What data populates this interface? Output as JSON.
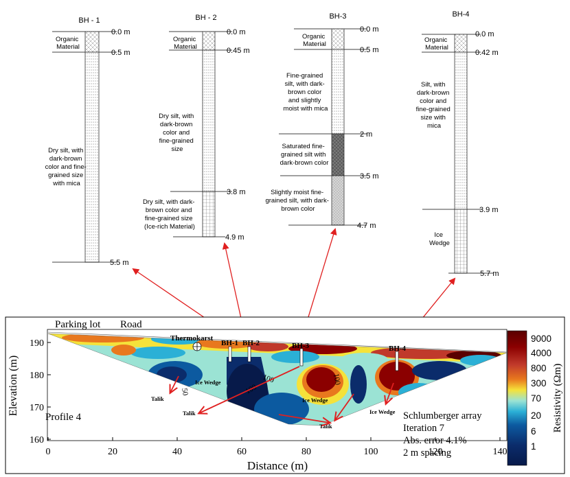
{
  "boreholes": [
    {
      "name": "BH - 1",
      "top_label": "0.0 m",
      "layers": [
        {
          "desc": [
            "Organic",
            "Material"
          ],
          "depth_label": "0.5 m"
        },
        {
          "desc": [
            "Dry silt, with",
            "dark-brown",
            "color and fine-",
            "grained size",
            "with mica"
          ],
          "depth_label": "5.5 m"
        }
      ]
    },
    {
      "name": "BH - 2",
      "top_label": "0.0 m",
      "layers": [
        {
          "desc": [
            "Organic",
            "Material"
          ],
          "depth_label": "0.45 m"
        },
        {
          "desc": [
            "Dry silt, with",
            "dark-brown",
            "color and",
            "fine-grained",
            "size"
          ],
          "depth_label": "3.8 m"
        },
        {
          "desc": [
            "Dry silt, with dark-",
            "brown color and",
            "fine-grained size",
            "(Ice-rich Material)"
          ],
          "depth_label": "4.9 m"
        }
      ]
    },
    {
      "name": "BH-3",
      "top_label": "0.0 m",
      "layers": [
        {
          "desc": [
            "Organic",
            "Material"
          ],
          "depth_label": "0.5 m"
        },
        {
          "desc": [
            "Fine-grained",
            "silt, with dark-",
            "brown color",
            "and slightly",
            "moist with mica"
          ],
          "depth_label": "2 m"
        },
        {
          "desc": [
            "Saturated fine-",
            "grained silt with",
            "dark-brown color"
          ],
          "depth_label": "3.5 m"
        },
        {
          "desc": [
            "Slightly moist fine-",
            "grained silt, with dark-",
            "brown color"
          ],
          "depth_label": "4.7 m"
        }
      ]
    },
    {
      "name": "BH-4",
      "top_label": "0.0 m",
      "layers": [
        {
          "desc": [
            "Organic",
            "Material"
          ],
          "depth_label": "0.42 m"
        },
        {
          "desc": [
            "Silt, with",
            "dark-brown",
            "color and",
            "fine-grained",
            "size with",
            "mica"
          ],
          "depth_label": "3.9 m"
        },
        {
          "desc": [
            "Ice",
            "Wedge"
          ],
          "depth_label": "5.7 m"
        }
      ]
    }
  ],
  "profile": {
    "ylabel": "Elevation (m)",
    "xlabel": "Distance (m)",
    "x_ticks": [
      "0",
      "20",
      "40",
      "60",
      "80",
      "100",
      "120",
      "140"
    ],
    "y_ticks": [
      "160",
      "170",
      "180",
      "190"
    ],
    "site_labels": {
      "parking": "Parking lot",
      "road": "Road",
      "thermokarst": "Thermokarst"
    },
    "borehole_markers": [
      "BH-1",
      "BH-2",
      "BH-3",
      "BH-4"
    ],
    "profile_label": "Profile 4",
    "annotations": [
      "Ice Wedge",
      "Ice Wedge",
      "Ice Wedge",
      "Talik",
      "Talik",
      "Talik"
    ],
    "contour_labels": [
      "50",
      "100",
      "100",
      "100"
    ],
    "info": [
      "Schlumberger array",
      "Iteration 7",
      "Abs. error 4.1%",
      "2 m spacing"
    ]
  },
  "colorbar": {
    "label": "Resistivity (Ωm)",
    "ticks": [
      "9000",
      "4000",
      "800",
      "300",
      "70",
      "20",
      "6",
      "1"
    ],
    "colors": [
      "#5a0000",
      "#8b0000",
      "#c0392b",
      "#e8781e",
      "#f5e23a",
      "#9be3d4",
      "#2bb0d6",
      "#0c5aa0",
      "#0b2c6b",
      "#071a4a"
    ]
  }
}
